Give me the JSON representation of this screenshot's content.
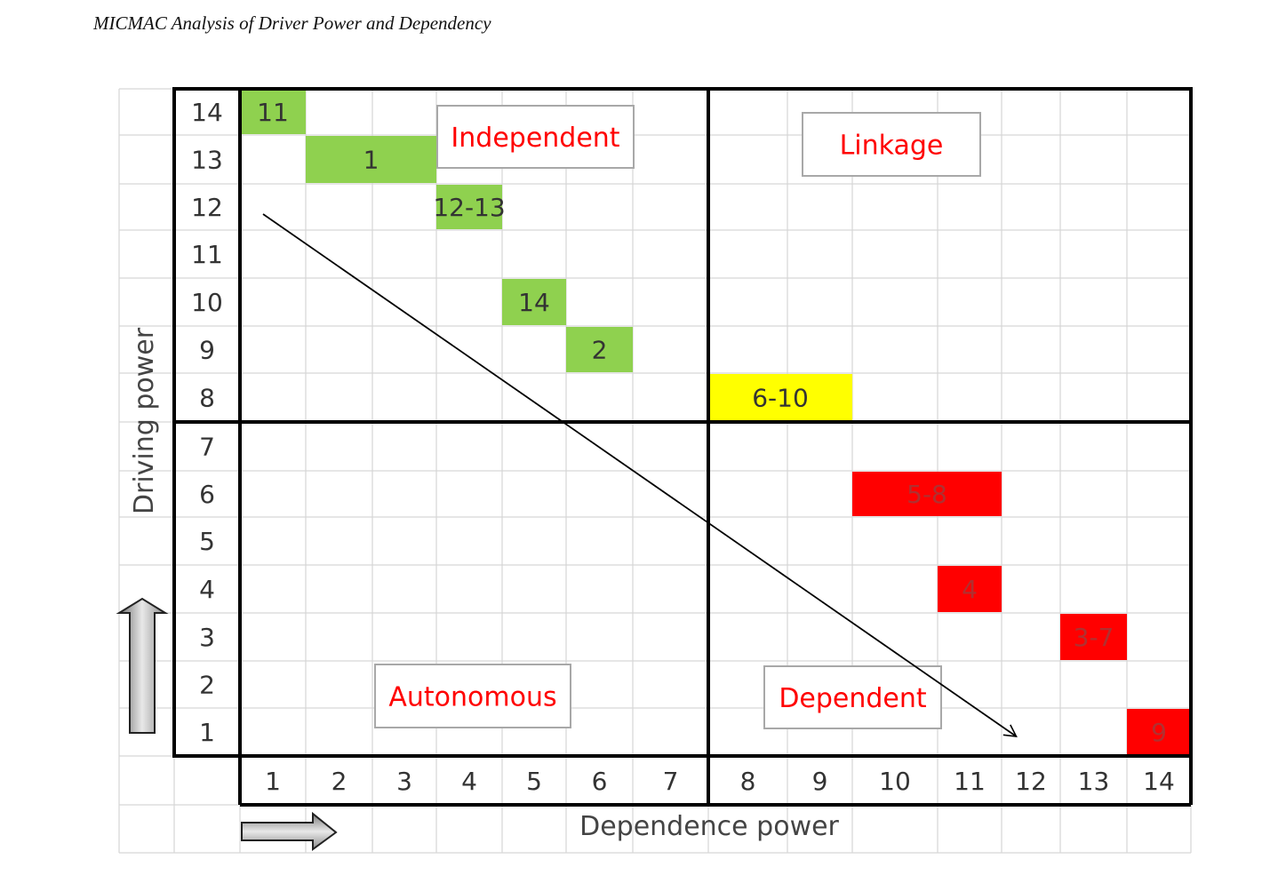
{
  "caption": "MICMAC Analysis of Driver Power and Dependency",
  "chart_data": {
    "type": "scatter",
    "title": "MICMAC Analysis of Driver Power and Dependency",
    "xlabel": "Dependence power",
    "ylabel": "Driving power",
    "xlim": [
      1,
      14
    ],
    "ylim": [
      1,
      14
    ],
    "x_ticks": [
      "1",
      "2",
      "3",
      "4",
      "5",
      "6",
      "7",
      "8",
      "9",
      "10",
      "11",
      "12",
      "13",
      "14"
    ],
    "y_ticks": [
      "14",
      "13",
      "12",
      "11",
      "10",
      "9",
      "8",
      "7",
      "6",
      "5",
      "4",
      "3",
      "2",
      "1"
    ],
    "grid": true,
    "quadrants": [
      {
        "name": "Independent",
        "position": "top-left"
      },
      {
        "name": "Linkage",
        "position": "top-right"
      },
      {
        "name": "Autonomous",
        "position": "bottom-left"
      },
      {
        "name": "Dependent",
        "position": "bottom-right"
      }
    ],
    "points": [
      {
        "label": "11",
        "x": 1,
        "y": 14,
        "x_span": [
          1,
          1
        ],
        "color": "#8fd14f",
        "text_color": "#333333"
      },
      {
        "label": "1",
        "x": 2,
        "y": 13,
        "x_span": [
          2,
          3
        ],
        "color": "#8fd14f",
        "text_color": "#333333"
      },
      {
        "label": "12-13",
        "x": 4,
        "y": 12,
        "x_span": [
          4,
          4
        ],
        "color": "#8fd14f",
        "text_color": "#333333"
      },
      {
        "label": "14",
        "x": 5,
        "y": 10,
        "x_span": [
          5,
          5
        ],
        "color": "#8fd14f",
        "text_color": "#333333"
      },
      {
        "label": "2",
        "x": 6,
        "y": 9,
        "x_span": [
          6,
          6
        ],
        "color": "#8fd14f",
        "text_color": "#333333"
      },
      {
        "label": "6-10",
        "x": 8,
        "y": 8,
        "x_span": [
          8,
          9
        ],
        "color": "#ffff00",
        "text_color": "#333333"
      },
      {
        "label": "5-8",
        "x": 10,
        "y": 6,
        "x_span": [
          10,
          11
        ],
        "color": "#ff0000",
        "text_color": "#b03030"
      },
      {
        "label": "4",
        "x": 11,
        "y": 4,
        "x_span": [
          11,
          11
        ],
        "color": "#ff0000",
        "text_color": "#b03030"
      },
      {
        "label": "3-7",
        "x": 13,
        "y": 3,
        "x_span": [
          13,
          13
        ],
        "color": "#ff0000",
        "text_color": "#b03030"
      },
      {
        "label": "9",
        "x": 14,
        "y": 1,
        "x_span": [
          14,
          14
        ],
        "color": "#ff0000",
        "text_color": "#b03030"
      }
    ],
    "trend_arrow": {
      "from": [
        1,
        12
      ],
      "to": [
        12.25,
        1
      ],
      "direction": "down-right"
    }
  }
}
